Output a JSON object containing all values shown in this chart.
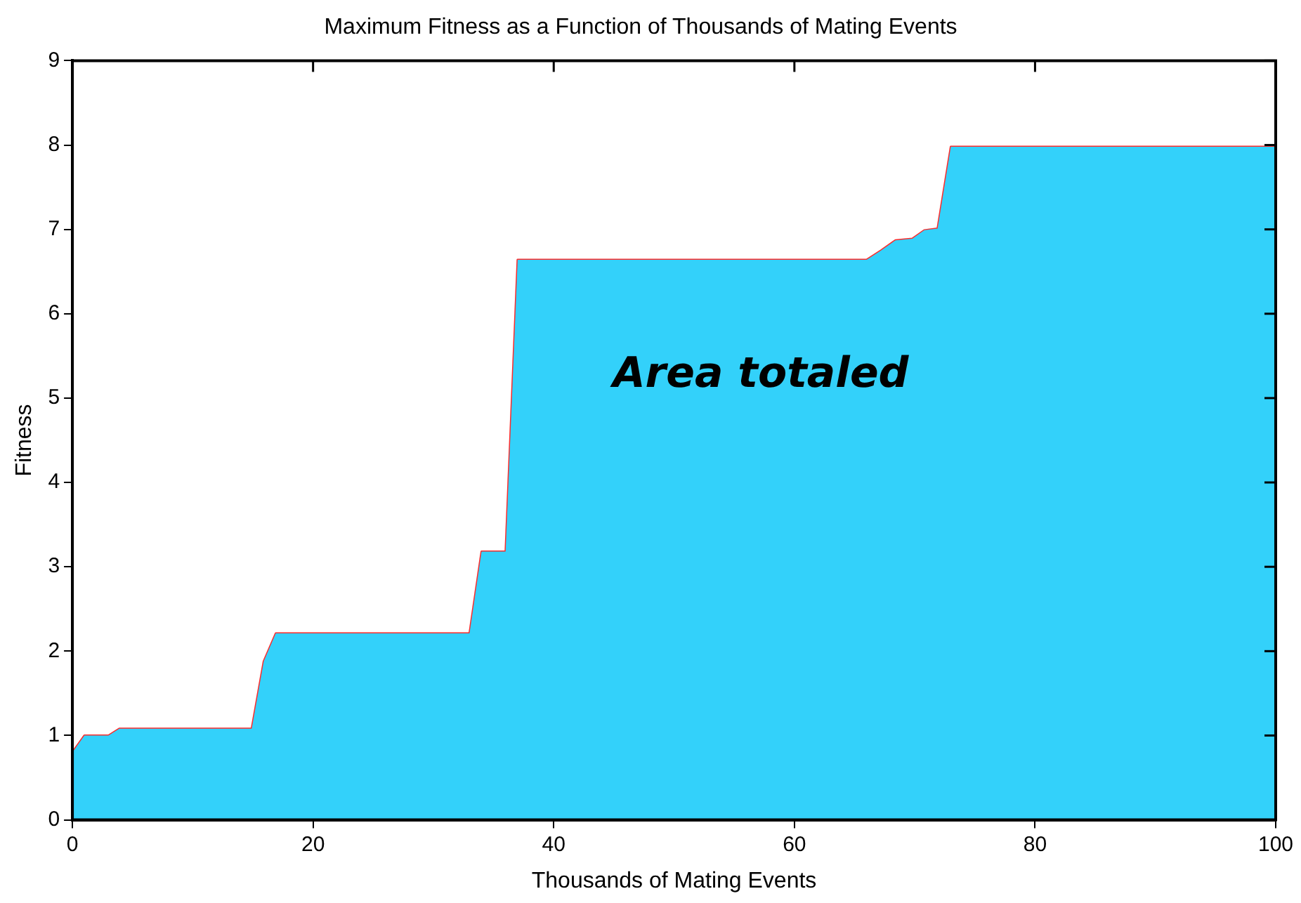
{
  "chart_data": {
    "type": "area",
    "title": "Maximum Fitness as a Function of Thousands of Mating Events",
    "xlabel": "Thousands of Mating Events",
    "ylabel": "Fitness",
    "x": [
      0,
      1,
      3,
      3.9,
      14.9,
      15.9,
      16.9,
      33,
      34,
      36,
      37,
      66,
      67.2,
      68.4,
      69.8,
      70.8,
      71.9,
      73,
      100
    ],
    "series": [
      {
        "color": "#33d1fa",
        "values": [
          0.8,
          1.0,
          1.0,
          1.08,
          1.08,
          1.88,
          2.21,
          2.21,
          3.18,
          3.18,
          6.64,
          6.64,
          6.75,
          6.87,
          6.89,
          6.99,
          7.01,
          7.98,
          7.98
        ]
      },
      {
        "type": "line",
        "color": "#ff2a2a",
        "values": [
          0.8,
          1.0,
          1.0,
          1.08,
          1.08,
          1.88,
          2.21,
          2.21,
          3.18,
          3.18,
          6.64,
          6.64,
          6.75,
          6.87,
          6.89,
          6.99,
          7.01,
          7.98,
          7.98
        ]
      }
    ],
    "xlim": [
      0,
      100
    ],
    "xticks": [
      0,
      20,
      40,
      60,
      80,
      100
    ],
    "ylim": [
      0,
      9
    ],
    "yticks": [
      0,
      1,
      2,
      3,
      4,
      5,
      6,
      7,
      8,
      9
    ],
    "grid": false,
    "legend": false,
    "marker": "none",
    "annotations": [
      "Area totaled"
    ]
  }
}
